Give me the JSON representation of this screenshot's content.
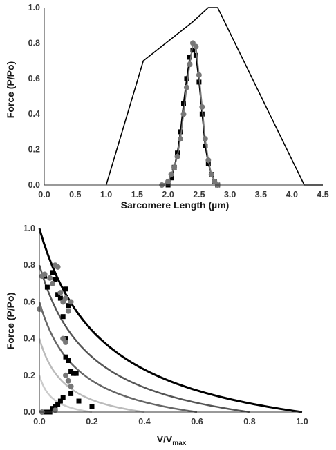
{
  "chart_data": [
    {
      "type": "line",
      "xlabel": "Sarcomere Length (µm)",
      "ylabel": "Force (P/Po)",
      "xlim": [
        0.0,
        4.5
      ],
      "ylim": [
        0.0,
        1.0
      ],
      "x_ticks": [
        "0.0",
        "0.5",
        "1.0",
        "1.5",
        "2.0",
        "2.5",
        "3.0",
        "3.5",
        "4.0",
        "4.5"
      ],
      "y_ticks": [
        "0.0",
        "0.2",
        "0.4",
        "0.6",
        "0.8",
        "1.0"
      ],
      "grid": false,
      "series": [
        {
          "style": "line",
          "color": "#000000",
          "x": [
            1.0,
            1.6,
            2.4,
            2.65,
            2.8,
            4.2,
            4.5
          ],
          "y": [
            0.0,
            0.7,
            0.92,
            1.0,
            1.0,
            0.0,
            0.0
          ]
        },
        {
          "style": "square-markers-line",
          "color": "#000000",
          "x": [
            2.0,
            2.05,
            2.1,
            2.15,
            2.2,
            2.25,
            2.3,
            2.35,
            2.4,
            2.45,
            2.5,
            2.55,
            2.6,
            2.65,
            2.7,
            2.75,
            2.8
          ],
          "y": [
            0.0,
            0.04,
            0.1,
            0.18,
            0.3,
            0.46,
            0.6,
            0.72,
            0.76,
            0.73,
            0.58,
            0.4,
            0.22,
            0.12,
            0.06,
            0.02,
            0.0
          ]
        },
        {
          "style": "circle-markers-line",
          "color": "#777777",
          "x": [
            1.9,
            2.0,
            2.05,
            2.1,
            2.15,
            2.2,
            2.25,
            2.3,
            2.35,
            2.4,
            2.45,
            2.5,
            2.55,
            2.6,
            2.65,
            2.7,
            2.75,
            2.8
          ],
          "y": [
            0.0,
            0.02,
            0.06,
            0.1,
            0.16,
            0.26,
            0.4,
            0.55,
            0.68,
            0.8,
            0.78,
            0.62,
            0.44,
            0.26,
            0.14,
            0.06,
            0.02,
            0.0
          ]
        }
      ]
    },
    {
      "type": "line",
      "xlabel": "V/V",
      "xlabel_sub": "max",
      "ylabel": "Force (P/Po)",
      "xlim": [
        0.0,
        1.0
      ],
      "ylim": [
        0.0,
        1.0
      ],
      "x_ticks": [
        "0.0",
        "0.2",
        "0.4",
        "0.6",
        "0.8",
        "1.0"
      ],
      "y_ticks": [
        "0.0",
        "0.2",
        "0.4",
        "0.6",
        "0.8",
        "1.0"
      ],
      "grid": false,
      "curves": [
        {
          "p0": 1.0,
          "vmax": 1.0,
          "color": "#000000"
        },
        {
          "p0": 0.8,
          "vmax": 0.8,
          "color": "#555555"
        },
        {
          "p0": 0.6,
          "vmax": 0.6,
          "color": "#666666"
        },
        {
          "p0": 0.4,
          "vmax": 0.4,
          "color": "#bbbbbb"
        },
        {
          "p0": 0.2,
          "vmax": 0.2,
          "color": "#cccccc"
        }
      ],
      "series": [
        {
          "style": "square-markers",
          "color": "#000000",
          "x": [
            0.02,
            0.03,
            0.05,
            0.06,
            0.07,
            0.08,
            0.09,
            0.1,
            0.1,
            0.11,
            0.11,
            0.12,
            0.13,
            0.14,
            0.05,
            0.07,
            0.08,
            0.09,
            0.04,
            0.06,
            0.03,
            0.02,
            0.12,
            0.15,
            0.2,
            0.1
          ],
          "y": [
            0.74,
            0.68,
            0.76,
            0.72,
            0.64,
            0.62,
            0.52,
            0.4,
            0.3,
            0.28,
            0.58,
            0.22,
            0.21,
            0.21,
            0.02,
            0.04,
            0.06,
            0.08,
            0.0,
            0.03,
            0.0,
            0.0,
            0.1,
            0.06,
            0.03,
            0.67
          ]
        },
        {
          "style": "circle-markers",
          "color": "#777777",
          "x": [
            0.0,
            0.01,
            0.02,
            0.04,
            0.05,
            0.06,
            0.07,
            0.08,
            0.09,
            0.1,
            0.11,
            0.12,
            0.1,
            0.11,
            0.12,
            0.09,
            0.1,
            0.01,
            0.06
          ],
          "y": [
            0.56,
            0.74,
            0.75,
            0.73,
            0.7,
            0.8,
            0.79,
            0.65,
            0.6,
            0.62,
            0.55,
            0.6,
            0.2,
            0.17,
            0.14,
            0.4,
            0.38,
            0.0,
            0.01
          ]
        }
      ]
    }
  ]
}
